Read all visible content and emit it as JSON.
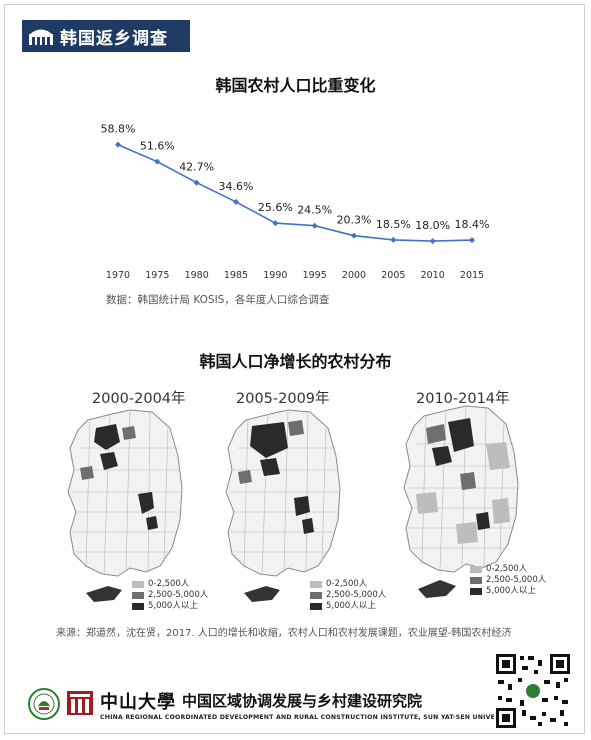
{
  "header": {
    "badge_text": "韩国返乡调查"
  },
  "line_chart_title": "韩国农村人口比重变化",
  "chart_data": {
    "type": "line",
    "title": "韩国农村人口比重变化",
    "categories": [
      "1970",
      "1975",
      "1980",
      "1985",
      "1990",
      "1995",
      "2000",
      "2005",
      "2010",
      "2015"
    ],
    "values": [
      58.8,
      51.6,
      42.7,
      34.6,
      25.6,
      24.5,
      20.3,
      18.5,
      18.0,
      18.4
    ],
    "data_labels": [
      "58.8%",
      "51.6%",
      "42.7%",
      "34.6%",
      "25.6%",
      "24.5%",
      "20.3%",
      "18.5%",
      "18.0%",
      "18.4%"
    ],
    "ylim": [
      10,
      65
    ],
    "grid": false,
    "line_color": "#4472c4"
  },
  "line_chart_source": "数据：韩国统计局 KOSIS，各年度人口综合调查",
  "maps_title": "韩国人口净增长的农村分布",
  "maps": [
    {
      "caption": "2000-2004年"
    },
    {
      "caption": "2005-2009年"
    },
    {
      "caption": "2010-2014年"
    }
  ],
  "legend": {
    "items": [
      {
        "label": "0-2,500人",
        "color": "#bdbdbd"
      },
      {
        "label": "2,500-5,000人",
        "color": "#6e6e6e"
      },
      {
        "label": "5,000人以上",
        "color": "#2a2a2a"
      }
    ]
  },
  "maps_source": "来源：郑道然，沈在贤，2017. 人口的增长和收缩，农村人口和农村发展课题，农业展望-韩国农村经济",
  "footer": {
    "university": "中山大學",
    "institute": "中国区域协调发展与乡村建设研究院",
    "english": "CHINA REGIONAL COORDINATED DEVELOPMENT AND RURAL CONSTRUCTION INSTITUTE, SUN YAT-SEN UNIVERSITY"
  }
}
